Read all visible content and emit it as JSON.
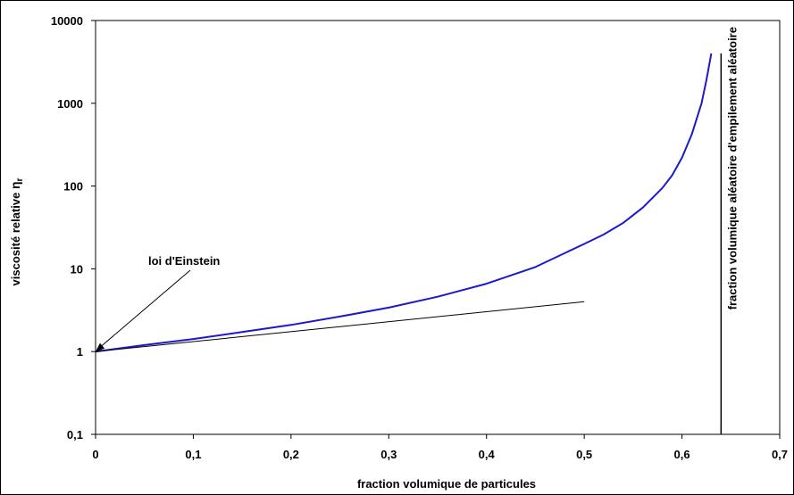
{
  "chart_data": {
    "type": "line",
    "xlabel": "fraction volumique de particules",
    "ylabel_main": "viscosité relative ",
    "ylabel_symbol": "η",
    "ylabel_sub": "r",
    "y_scale": "log",
    "xlim": [
      0,
      0.7
    ],
    "ylim": [
      0.1,
      10000
    ],
    "x_ticks": [
      "0",
      "0,1",
      "0,2",
      "0,3",
      "0,4",
      "0,5",
      "0,6",
      "0,7"
    ],
    "x_tick_values": [
      0,
      0.1,
      0.2,
      0.3,
      0.4,
      0.5,
      0.6,
      0.7
    ],
    "y_ticks": [
      "0,1",
      "1",
      "10",
      "100",
      "1000",
      "10000"
    ],
    "y_tick_values": [
      0.1,
      1,
      10,
      100,
      1000,
      10000
    ],
    "series": [
      {
        "color": "#1a1acc",
        "x": [
          0,
          0.05,
          0.1,
          0.15,
          0.2,
          0.25,
          0.3,
          0.35,
          0.4,
          0.45,
          0.5,
          0.52,
          0.54,
          0.56,
          0.58,
          0.59,
          0.6,
          0.61,
          0.62,
          0.625,
          0.63
        ],
        "y": [
          1,
          1.2,
          1.42,
          1.72,
          2.1,
          2.65,
          3.4,
          4.6,
          6.6,
          10.5,
          20,
          26,
          36,
          55,
          95,
          135,
          220,
          420,
          1000,
          1900,
          4000
        ]
      },
      {
        "color": "#000000",
        "x": [
          0,
          0.5
        ],
        "y": [
          1,
          4
        ]
      }
    ],
    "vline": {
      "x": 0.64,
      "label": "fraction volumique aléatoire d'empilement aléatoire"
    },
    "annotation": {
      "text": "loi d'Einstein",
      "point_x": 0,
      "point_y": 1
    }
  }
}
